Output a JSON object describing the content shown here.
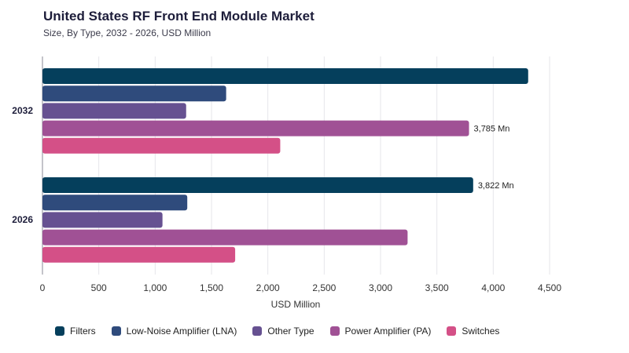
{
  "chart_data": {
    "type": "bar",
    "orientation": "horizontal",
    "title": "United States RF Front End Module Market",
    "subtitle": "Size, By Type, 2032 - 2026, USD Million",
    "xlabel": "USD Million",
    "ylabel": "",
    "xlim": [
      0,
      4500
    ],
    "xticks": [
      "0",
      "500",
      "1,000",
      "1,500",
      "2,000",
      "2,500",
      "3,000",
      "3,500",
      "4,000",
      "4,500"
    ],
    "grid": true,
    "legend": "bottom",
    "categories": [
      "2032",
      "2026"
    ],
    "series": [
      {
        "name": "Filters",
        "color": "#053f5c",
        "values": [
          4310,
          3822
        ]
      },
      {
        "name": "Low-Noise Amplifier (LNA)",
        "color": "#2f4b7c",
        "values": [
          1630,
          1285
        ]
      },
      {
        "name": "Other Type",
        "color": "#665191",
        "values": [
          1275,
          1065
        ]
      },
      {
        "name": "Power Amplifier (PA)",
        "color": "#a05195",
        "values": [
          3785,
          3240
        ]
      },
      {
        "name": "Switches",
        "color": "#d45087",
        "values": [
          2110,
          1710
        ]
      }
    ],
    "annotations": [
      {
        "category": "2032",
        "series": "Power Amplifier (PA)",
        "text": "3,785 Mn"
      },
      {
        "category": "2026",
        "series": "Filters",
        "text": "3,822 Mn"
      }
    ]
  }
}
